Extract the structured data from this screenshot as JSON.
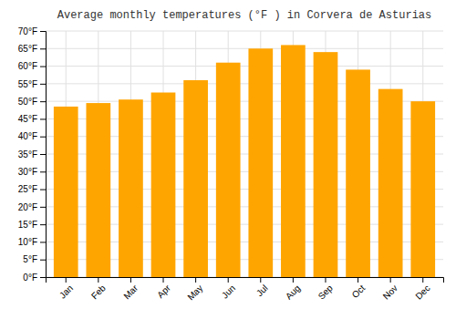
{
  "chart_data": {
    "type": "bar",
    "title": "Average monthly temperatures (°F ) in Corvera de Asturias",
    "categories": [
      "Jan",
      "Feb",
      "Mar",
      "Apr",
      "May",
      "Jun",
      "Jul",
      "Aug",
      "Sep",
      "Oct",
      "Nov",
      "Dec"
    ],
    "values": [
      48.5,
      49.5,
      50.5,
      52.5,
      56.0,
      61.0,
      65.0,
      66.0,
      64.0,
      59.0,
      53.5,
      50.0
    ],
    "color": "#FFA500",
    "ylim": [
      0,
      70
    ],
    "yticks": [
      {
        "value": 0,
        "label": "0°F"
      },
      {
        "value": 5,
        "label": "5°F"
      },
      {
        "value": 10,
        "label": "10°F"
      },
      {
        "value": 15,
        "label": "15°F"
      },
      {
        "value": 20,
        "label": "20°F"
      },
      {
        "value": 25,
        "label": "25°F"
      },
      {
        "value": 30,
        "label": "30°F"
      },
      {
        "value": 35,
        "label": "35°F"
      },
      {
        "value": 40,
        "label": "40°F"
      },
      {
        "value": 45,
        "label": "45°F"
      },
      {
        "value": 50,
        "label": "50°F"
      },
      {
        "value": 55,
        "label": "55°F"
      },
      {
        "value": 60,
        "label": "60°F"
      },
      {
        "value": 65,
        "label": "65°F"
      },
      {
        "value": 70,
        "label": "70°F"
      }
    ],
    "grid": true
  }
}
